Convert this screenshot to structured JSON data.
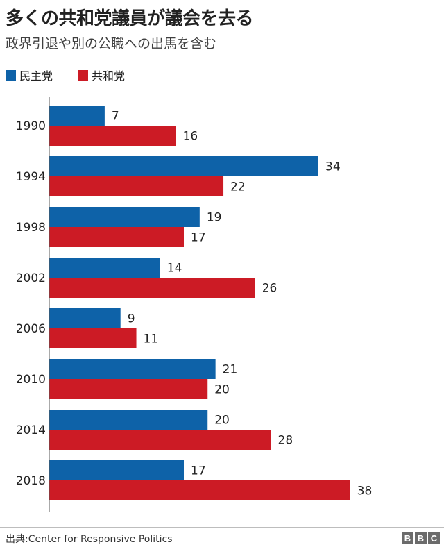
{
  "chart_data": {
    "type": "bar",
    "orientation": "horizontal",
    "title": "多くの共和党議員が議会を去る",
    "subtitle": "政界引退や別の公職への出馬を含む",
    "categories": [
      "1990",
      "1994",
      "1998",
      "2002",
      "2006",
      "2010",
      "2014",
      "2018"
    ],
    "series": [
      {
        "name": "民主党",
        "color": "#0e62a8",
        "values": [
          7,
          34,
          19,
          14,
          9,
          21,
          20,
          17
        ]
      },
      {
        "name": "共和党",
        "color": "#cc1b25",
        "values": [
          16,
          22,
          17,
          26,
          11,
          20,
          28,
          38
        ]
      }
    ],
    "xlim": [
      0,
      40
    ],
    "grid": false,
    "legend_position": "top-left",
    "source": "出典:Center for Responsive Politics"
  },
  "branding": {
    "logo_letters": [
      "B",
      "B",
      "C"
    ]
  }
}
